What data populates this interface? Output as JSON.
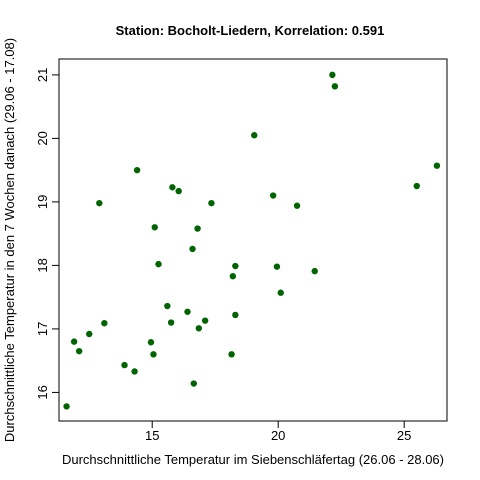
{
  "chart_data": {
    "type": "scatter",
    "title": "Station: Bocholt-Liedern, Korrelation: 0.591",
    "xlabel": "Durchschnittliche Temperatur im Siebenschläfertag (26.06 - 28.06)",
    "ylabel": "Durchschnittliche Temperatur in den 7 Wochen danach (29.06 - 17.08)",
    "xlim": [
      11.3,
      26.7
    ],
    "ylim": [
      15.55,
      21.25
    ],
    "xticks": [
      15,
      20,
      25
    ],
    "yticks": [
      16,
      17,
      18,
      19,
      20,
      21
    ],
    "point_color": "#006400",
    "grid": false,
    "points": [
      {
        "x": 11.6,
        "y": 15.78
      },
      {
        "x": 11.9,
        "y": 16.8
      },
      {
        "x": 12.1,
        "y": 16.65
      },
      {
        "x": 12.5,
        "y": 16.92
      },
      {
        "x": 12.9,
        "y": 18.98
      },
      {
        "x": 13.1,
        "y": 17.09
      },
      {
        "x": 13.9,
        "y": 16.43
      },
      {
        "x": 14.3,
        "y": 16.33
      },
      {
        "x": 14.4,
        "y": 19.5
      },
      {
        "x": 14.95,
        "y": 16.79
      },
      {
        "x": 15.05,
        "y": 16.6
      },
      {
        "x": 15.1,
        "y": 18.6
      },
      {
        "x": 15.25,
        "y": 18.02
      },
      {
        "x": 15.6,
        "y": 17.36
      },
      {
        "x": 15.75,
        "y": 17.1
      },
      {
        "x": 15.8,
        "y": 19.23
      },
      {
        "x": 16.05,
        "y": 19.17
      },
      {
        "x": 16.4,
        "y": 17.27
      },
      {
        "x": 16.6,
        "y": 18.26
      },
      {
        "x": 16.65,
        "y": 16.14
      },
      {
        "x": 16.8,
        "y": 18.58
      },
      {
        "x": 16.85,
        "y": 17.01
      },
      {
        "x": 17.1,
        "y": 17.13
      },
      {
        "x": 17.35,
        "y": 18.98
      },
      {
        "x": 18.15,
        "y": 16.6
      },
      {
        "x": 18.2,
        "y": 17.83
      },
      {
        "x": 18.3,
        "y": 17.22
      },
      {
        "x": 18.3,
        "y": 17.99
      },
      {
        "x": 19.05,
        "y": 20.05
      },
      {
        "x": 19.8,
        "y": 19.1
      },
      {
        "x": 19.95,
        "y": 17.98
      },
      {
        "x": 20.1,
        "y": 17.57
      },
      {
        "x": 20.75,
        "y": 18.94
      },
      {
        "x": 21.45,
        "y": 17.91
      },
      {
        "x": 22.15,
        "y": 21.0
      },
      {
        "x": 22.25,
        "y": 20.82
      },
      {
        "x": 25.5,
        "y": 19.25
      },
      {
        "x": 26.3,
        "y": 19.57
      }
    ]
  }
}
